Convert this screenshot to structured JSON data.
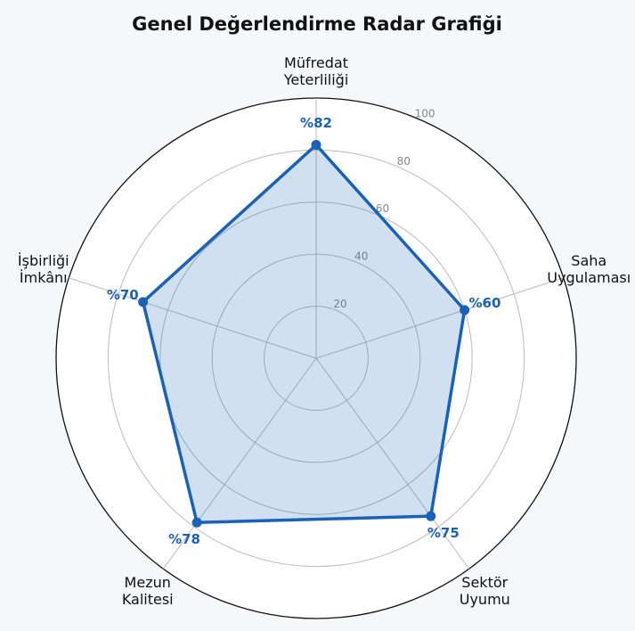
{
  "chart_data": {
    "type": "radar",
    "title": "Genel Değerlendirme Radar Grafiği",
    "categories": [
      "Müfredat\nYeterliliği",
      "Saha\nUygulaması",
      "Sektör\nUyumu",
      "Mezun\nKalitesi",
      "İşbirliği\nİmkânı"
    ],
    "values": [
      82,
      60,
      75,
      78,
      70
    ],
    "value_labels": [
      "%82",
      "%60",
      "%75",
      "%78",
      "%70"
    ],
    "color": "#1a62b8",
    "ylim": [
      0,
      100
    ],
    "yticks": [
      20,
      40,
      60,
      80,
      100
    ],
    "grid": true
  }
}
